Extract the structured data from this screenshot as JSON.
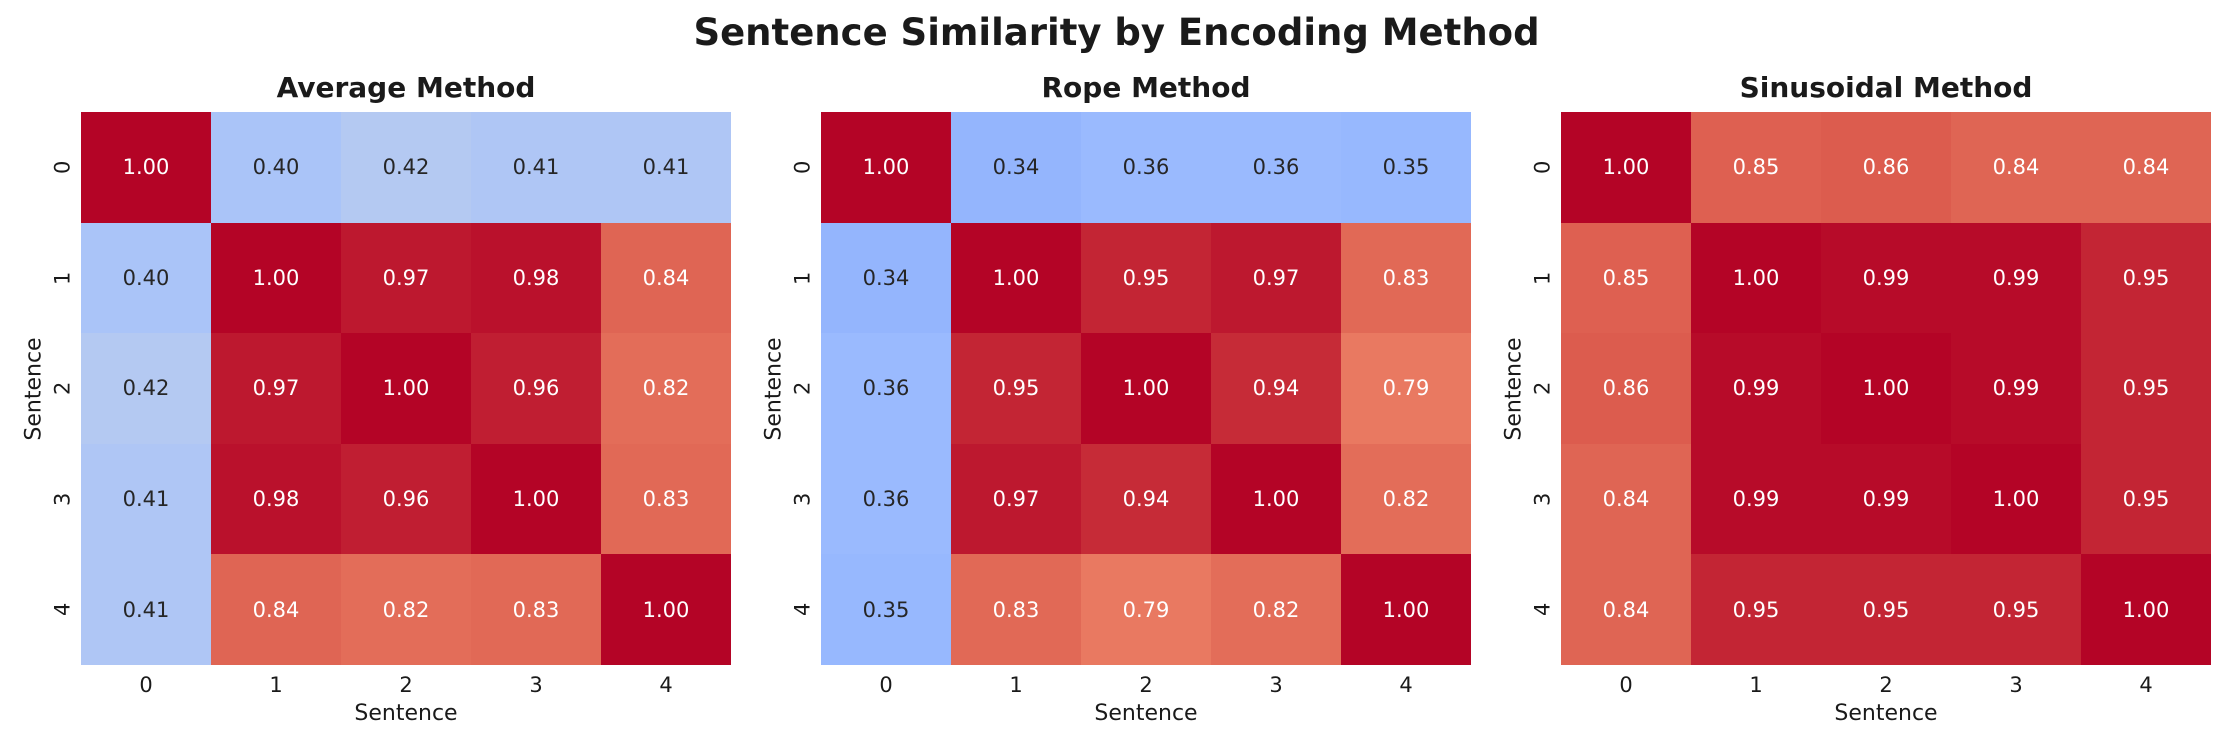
{
  "page": {
    "title": "Sentence Similarity by Encoding Method"
  },
  "colors": {
    "background": "#ffffff",
    "text": "#1a1a1a",
    "annotation_light": "#ffffff",
    "annotation_dark": "#262626",
    "coolwarm_stops": [
      {
        "t": 0.0,
        "hex": "#3B4CC0"
      },
      {
        "t": 0.125,
        "hex": "#5977E3"
      },
      {
        "t": 0.25,
        "hex": "#7B9FF9"
      },
      {
        "t": 0.375,
        "hex": "#9EBEFF"
      },
      {
        "t": 0.5,
        "hex": "#DCDCDC"
      },
      {
        "t": 0.625,
        "hex": "#F6B69B"
      },
      {
        "t": 0.75,
        "hex": "#F08A6C"
      },
      {
        "t": 0.875,
        "hex": "#D9564A"
      },
      {
        "t": 1.0,
        "hex": "#B40426"
      }
    ]
  },
  "chart_data": [
    {
      "type": "heatmap",
      "title": "Average Method",
      "xlabel": "Sentence",
      "ylabel": "Sentence",
      "colormap": "coolwarm",
      "vmin": 0,
      "vmax": 1,
      "annot_format": ".2f",
      "x_ticks": [
        "0",
        "1",
        "2",
        "3",
        "4"
      ],
      "y_ticks": [
        "0",
        "1",
        "2",
        "3",
        "4"
      ],
      "values": [
        [
          1.0,
          0.4,
          0.42,
          0.41,
          0.41
        ],
        [
          0.4,
          1.0,
          0.97,
          0.98,
          0.84
        ],
        [
          0.42,
          0.97,
          1.0,
          0.96,
          0.82
        ],
        [
          0.41,
          0.98,
          0.96,
          1.0,
          0.83
        ],
        [
          0.41,
          0.84,
          0.82,
          0.83,
          1.0
        ]
      ]
    },
    {
      "type": "heatmap",
      "title": "Rope Method",
      "xlabel": "Sentence",
      "ylabel": "Sentence",
      "colormap": "coolwarm",
      "vmin": 0,
      "vmax": 1,
      "annot_format": ".2f",
      "x_ticks": [
        "0",
        "1",
        "2",
        "3",
        "4"
      ],
      "y_ticks": [
        "0",
        "1",
        "2",
        "3",
        "4"
      ],
      "values": [
        [
          1.0,
          0.34,
          0.36,
          0.36,
          0.35
        ],
        [
          0.34,
          1.0,
          0.95,
          0.97,
          0.83
        ],
        [
          0.36,
          0.95,
          1.0,
          0.94,
          0.79
        ],
        [
          0.36,
          0.97,
          0.94,
          1.0,
          0.82
        ],
        [
          0.35,
          0.83,
          0.79,
          0.82,
          1.0
        ]
      ]
    },
    {
      "type": "heatmap",
      "title": "Sinusoidal Method",
      "xlabel": "Sentence",
      "ylabel": "Sentence",
      "colormap": "coolwarm",
      "vmin": 0,
      "vmax": 1,
      "annot_format": ".2f",
      "x_ticks": [
        "0",
        "1",
        "2",
        "3",
        "4"
      ],
      "y_ticks": [
        "0",
        "1",
        "2",
        "3",
        "4"
      ],
      "values": [
        [
          1.0,
          0.85,
          0.86,
          0.84,
          0.84
        ],
        [
          0.85,
          1.0,
          0.99,
          0.99,
          0.95
        ],
        [
          0.86,
          0.99,
          1.0,
          0.99,
          0.95
        ],
        [
          0.84,
          0.99,
          0.99,
          1.0,
          0.95
        ],
        [
          0.84,
          0.95,
          0.95,
          0.95,
          1.0
        ]
      ]
    }
  ]
}
